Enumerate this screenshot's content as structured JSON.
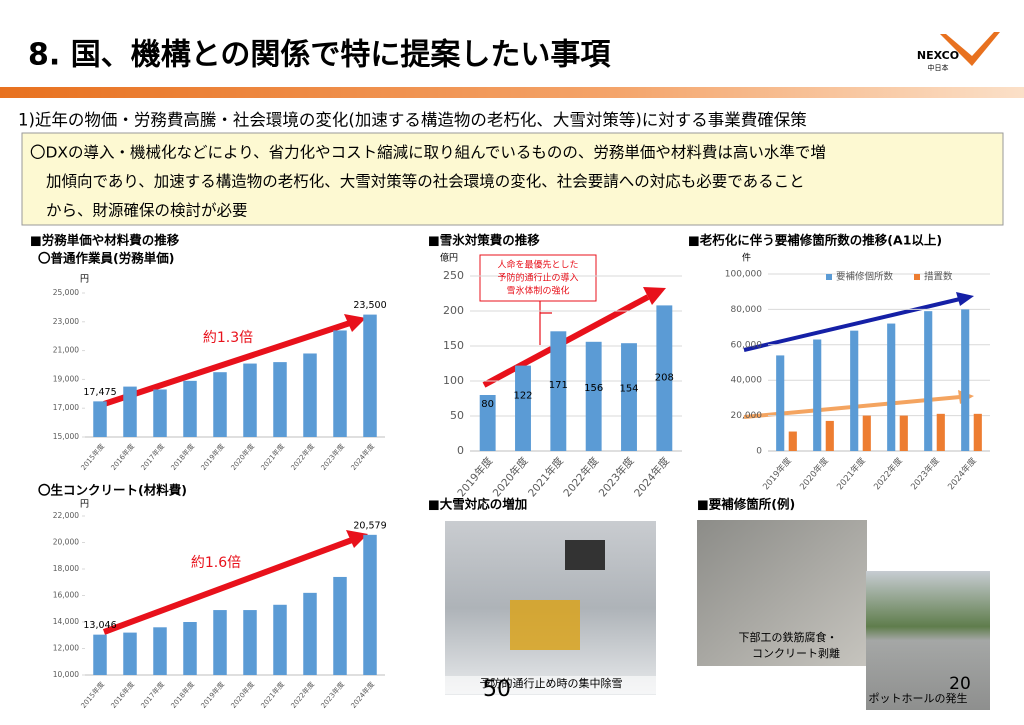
{
  "header": {
    "title": "8. 国、機構との関係で特に提案したい事項",
    "logo": "NEXCO",
    "logo_sub": "中日本"
  },
  "section": "1)近年の物価・労務費高騰・社会環境の変化(加速する構造物の老朽化、大雪対策等)に対する事業費確保策",
  "summary": [
    "〇DXの導入・機械化などにより、省力化やコスト縮減に取り組んでいるものの、労務単価や材料費は高い水準で増",
    "加傾向であり、加速する構造物の老朽化、大雪対策等の社会環境の変化、社会要請への対応も必要であること",
    "から、財源確保の検討が必要"
  ],
  "chart_data": [
    {
      "type": "bar",
      "heading": "■労務単価や材料費の推移",
      "subtitle": "〇普通作業員(労務単価)",
      "unit": "円",
      "color": "#5b9bd5",
      "grid": false,
      "categories": [
        "2015年度",
        "2016年度",
        "2017年度",
        "2018年度",
        "2019年度",
        "2020年度",
        "2021年度",
        "2022年度",
        "2023年度",
        "2024年度"
      ],
      "values": [
        17475,
        18500,
        18300,
        18900,
        19500,
        20100,
        20200,
        20800,
        22400,
        23500
      ],
      "value_labels": [
        "17,475",
        null,
        null,
        null,
        null,
        null,
        null,
        null,
        null,
        "23,500"
      ],
      "ylim": [
        15000,
        25000
      ],
      "yticks": [
        {
          "value": 15000,
          "label": "15,000"
        },
        {
          "value": 17000,
          "label": "17,000"
        },
        {
          "value": 19000,
          "label": "19,000"
        },
        {
          "value": 21000,
          "label": "21,000"
        },
        {
          "value": 23000,
          "label": "23,000"
        },
        {
          "value": 25000,
          "label": "25,000"
        }
      ],
      "annotation": "約1.3倍"
    },
    {
      "type": "bar",
      "subtitle": "〇生コンクリート(材料費)",
      "unit": "円",
      "color": "#5b9bd5",
      "grid": false,
      "categories": [
        "2015年度",
        "2016年度",
        "2017年度",
        "2018年度",
        "2019年度",
        "2020年度",
        "2021年度",
        "2022年度",
        "2023年度",
        "2024年度"
      ],
      "values": [
        13046,
        13200,
        13600,
        14000,
        14900,
        14900,
        15300,
        16200,
        17400,
        20579
      ],
      "value_labels": [
        "13,046",
        null,
        null,
        null,
        null,
        null,
        null,
        null,
        null,
        "20,579"
      ],
      "ylim": [
        10000,
        22000
      ],
      "yticks": [
        {
          "value": 10000,
          "label": "10,000"
        },
        {
          "value": 12000,
          "label": "12,000"
        },
        {
          "value": 14000,
          "label": "14,000"
        },
        {
          "value": 16000,
          "label": "16,000"
        },
        {
          "value": 18000,
          "label": "18,000"
        },
        {
          "value": 20000,
          "label": "20,000"
        },
        {
          "value": 22000,
          "label": "22,000"
        }
      ],
      "annotation": "約1.6倍"
    },
    {
      "type": "bar",
      "heading": "■雪氷対策費の推移",
      "unit": "億円",
      "color": "#5b9bd5",
      "grid": true,
      "categories": [
        "2019年度",
        "2020年度",
        "2021年度",
        "2022年度",
        "2023年度",
        "2024年度"
      ],
      "values": [
        80,
        122,
        171,
        156,
        154,
        208
      ],
      "ylim": [
        0,
        250
      ],
      "yticks": [
        0,
        50,
        100,
        150,
        200,
        250
      ],
      "annotation_lines": [
        "人命を最優先とした",
        "予防的通行止の導入",
        "雪氷体制の強化"
      ]
    },
    {
      "type": "bar",
      "heading": "■老朽化に伴う要補修箇所数の推移(A1以上)",
      "unit": "件",
      "grid": true,
      "legend": "top",
      "categories": [
        "2019年度",
        "2020年度",
        "2021年度",
        "2022年度",
        "2023年度",
        "2024年度"
      ],
      "series": [
        {
          "name": "要補修個所数",
          "color": "#5b9bd5",
          "values": [
            54000,
            63000,
            68000,
            72000,
            79000,
            80000
          ]
        },
        {
          "name": "措置数",
          "color": "#ed7d31",
          "values": [
            11000,
            17000,
            20000,
            20000,
            21000,
            21000
          ]
        }
      ],
      "ylim": [
        0,
        100000
      ],
      "yticks": [
        {
          "value": 0,
          "label": "0"
        },
        {
          "value": 20000,
          "label": "20,000"
        },
        {
          "value": 40000,
          "label": "40,000"
        },
        {
          "value": 60000,
          "label": "60,000"
        },
        {
          "value": 80000,
          "label": "80,000"
        },
        {
          "value": 100000,
          "label": "100,000"
        }
      ]
    }
  ],
  "photos": {
    "snow_heading": "■大雪対応の増加",
    "snow_caption": "予防的通行止め時の集中除雪",
    "repair_heading": "■要補修箇所(例)",
    "repair_caption1": [
      "下部工の鉄筋腐食・",
      "コンクリート剥離"
    ],
    "repair_caption2": "ポットホールの発生"
  },
  "page_numbers": [
    "50",
    "20"
  ]
}
